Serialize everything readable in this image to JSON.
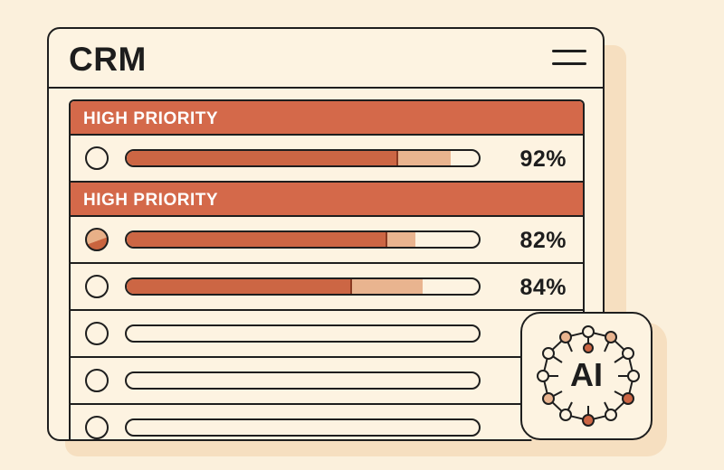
{
  "app": {
    "title": "CRM"
  },
  "header": {
    "menu_icon": "hamburger-menu-icon"
  },
  "sections": [
    {
      "label": "HIGH PRIORITY"
    },
    {
      "label": "HIGH PRIORITY"
    }
  ],
  "rows": [
    {
      "percent_label": "92%",
      "progress": 0.92,
      "primary_fill": 0.77,
      "radio_state": "empty"
    },
    {
      "percent_label": "82%",
      "progress": 0.82,
      "primary_fill": 0.74,
      "radio_state": "partial"
    },
    {
      "percent_label": "84%",
      "progress": 0.84,
      "primary_fill": 0.64,
      "radio_state": "empty"
    },
    {
      "percent_label": "",
      "progress": 0,
      "primary_fill": 0,
      "radio_state": "empty"
    },
    {
      "percent_label": "",
      "progress": 0,
      "primary_fill": 0,
      "radio_state": "empty"
    },
    {
      "percent_label": "",
      "progress": 0,
      "primary_fill": 0,
      "radio_state": "empty"
    }
  ],
  "ai_badge": {
    "label": "AI",
    "icon": "ai-network-icon"
  },
  "colors": {
    "background": "#fbf0dc",
    "accent": "#d4694a",
    "bar_fill": "#cc6644",
    "bar_secondary": "#e9b48f",
    "outline": "#1e1e1e"
  }
}
